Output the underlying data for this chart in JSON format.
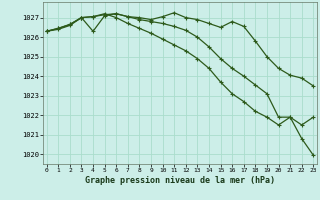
{
  "title": "Graphe pression niveau de la mer (hPa)",
  "bg_color": "#cceee8",
  "grid_color": "#aaddcc",
  "line_color": "#2d5a1b",
  "ylim": [
    1019.5,
    1027.8
  ],
  "yticks": [
    1020,
    1021,
    1022,
    1023,
    1024,
    1025,
    1026,
    1027
  ],
  "series": [
    [
      1026.3,
      1026.4,
      1026.6,
      1027.0,
      1026.3,
      1027.1,
      1027.2,
      1027.05,
      1027.0,
      1026.9,
      1027.05,
      1027.25,
      1027.0,
      1026.9,
      1026.7,
      1026.5,
      1026.8,
      1026.55,
      1025.8,
      1025.0,
      1024.4,
      1024.05,
      1023.9,
      1023.5
    ],
    [
      1026.3,
      1026.45,
      1026.65,
      1027.0,
      1027.05,
      1027.15,
      1027.2,
      1027.05,
      1026.9,
      1026.8,
      1026.7,
      1026.55,
      1026.35,
      1026.0,
      1025.5,
      1024.9,
      1024.4,
      1024.0,
      1023.55,
      1023.1,
      1021.9,
      1021.9,
      1021.5,
      1021.9
    ],
    [
      1026.3,
      1026.45,
      1026.65,
      1027.0,
      1027.05,
      1027.2,
      1027.0,
      1026.7,
      1026.45,
      1026.2,
      1025.9,
      1025.6,
      1025.3,
      1024.9,
      1024.4,
      1023.7,
      1023.1,
      1022.7,
      1022.2,
      1021.9,
      1021.5,
      1021.9,
      1020.8,
      1019.95
    ]
  ],
  "has_markers": [
    true,
    true,
    true
  ],
  "marker_every": [
    [
      0,
      1,
      2,
      3,
      4,
      5,
      6,
      7,
      8,
      9,
      10,
      11,
      12,
      13,
      14,
      15,
      16,
      17,
      18,
      19,
      20,
      21,
      22,
      23
    ],
    [
      0,
      1,
      2,
      3,
      4,
      5,
      6,
      7,
      8,
      9,
      10,
      11,
      12,
      13,
      14,
      15,
      16,
      17,
      18,
      19,
      20,
      21,
      22,
      23
    ],
    [
      0,
      1,
      2,
      3,
      4,
      5,
      6,
      7,
      8,
      9,
      10,
      11,
      12,
      13,
      14,
      15,
      16,
      17,
      18,
      19,
      20,
      21,
      22,
      23
    ]
  ]
}
